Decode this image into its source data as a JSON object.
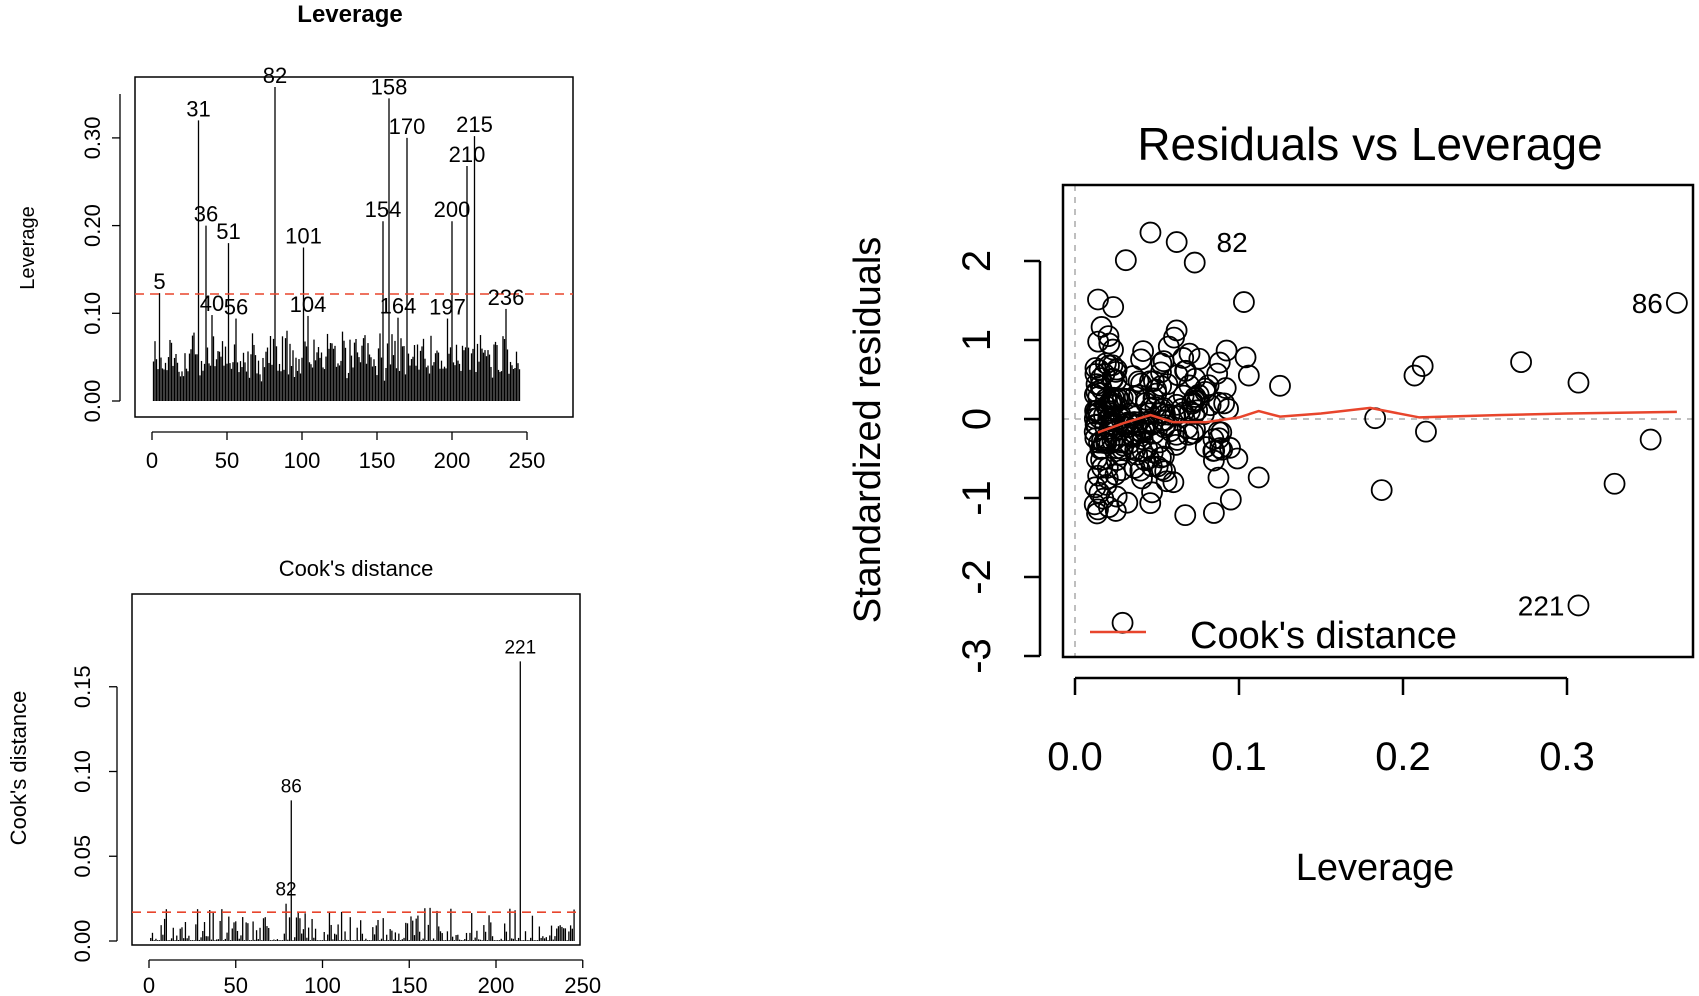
{
  "chart_data": [
    {
      "type": "bar",
      "title": "Leverage",
      "xlabel": "",
      "ylabel": "Leverage",
      "xlim": [
        0,
        250
      ],
      "ylim": [
        0,
        0.35
      ],
      "x_ticks": [
        "0",
        "50",
        "100",
        "150",
        "200",
        "250"
      ],
      "y_ticks": [
        "0.00",
        "0.10",
        "0.20",
        "0.30"
      ],
      "threshold": 0.122,
      "threshold_color": "#e8452c",
      "labeled_points": [
        {
          "label": "5",
          "x": 5,
          "y": 0.123
        },
        {
          "label": "31",
          "x": 31,
          "y": 0.32
        },
        {
          "label": "36",
          "x": 36,
          "y": 0.2
        },
        {
          "label": "51",
          "x": 51,
          "y": 0.18
        },
        {
          "label": "40",
          "x": 40,
          "y": 0.098
        },
        {
          "label": "56",
          "x": 56,
          "y": 0.094
        },
        {
          "label": "82",
          "x": 82,
          "y": 0.358
        },
        {
          "label": "101",
          "x": 101,
          "y": 0.175
        },
        {
          "label": "104",
          "x": 104,
          "y": 0.097
        },
        {
          "label": "154",
          "x": 154,
          "y": 0.205
        },
        {
          "label": "158",
          "x": 158,
          "y": 0.345
        },
        {
          "label": "164",
          "x": 164,
          "y": 0.095
        },
        {
          "label": "170",
          "x": 170,
          "y": 0.3
        },
        {
          "label": "197",
          "x": 197,
          "y": 0.094
        },
        {
          "label": "200",
          "x": 200,
          "y": 0.205
        },
        {
          "label": "210",
          "x": 210,
          "y": 0.268
        },
        {
          "label": "215",
          "x": 215,
          "y": 0.302
        },
        {
          "label": "236",
          "x": 236,
          "y": 0.105
        }
      ]
    },
    {
      "type": "bar",
      "title": "Cook's distance",
      "xlabel": "",
      "ylabel": "Cook's distance",
      "xlim": [
        0,
        250
      ],
      "ylim": [
        0,
        0.17
      ],
      "x_ticks": [
        "0",
        "50",
        "100",
        "150",
        "200",
        "250"
      ],
      "y_ticks": [
        "0.00",
        "0.05",
        "0.10",
        "0.15"
      ],
      "threshold": 0.017,
      "threshold_color": "#e8452c",
      "labeled_points": [
        {
          "label": "82",
          "x": 79,
          "y": 0.022
        },
        {
          "label": "86",
          "x": 82,
          "y": 0.083
        },
        {
          "label": "221",
          "x": 214,
          "y": 0.165
        }
      ]
    },
    {
      "type": "scatter",
      "title": "Residuals vs Leverage",
      "xlabel": "Leverage",
      "ylabel": "Standardized residuals",
      "xlim": [
        0,
        0.37
      ],
      "ylim": [
        -3,
        2.5
      ],
      "x_ticks": [
        "0.0",
        "0.1",
        "0.2",
        "0.3"
      ],
      "y_ticks": [
        "2",
        "1",
        "0",
        "-1",
        "-2",
        "-3"
      ],
      "smooth_color": "#e8452c",
      "smooth": [
        [
          0.014,
          -0.17
        ],
        [
          0.03,
          -0.05
        ],
        [
          0.046,
          0.05
        ],
        [
          0.06,
          -0.04
        ],
        [
          0.08,
          -0.04
        ],
        [
          0.1,
          0.02
        ],
        [
          0.112,
          0.1
        ],
        [
          0.125,
          0.03
        ],
        [
          0.15,
          0.07
        ],
        [
          0.18,
          0.14
        ],
        [
          0.21,
          0.02
        ],
        [
          0.26,
          0.05
        ],
        [
          0.3,
          0.07
        ],
        [
          0.367,
          0.09
        ]
      ],
      "outliers": [
        {
          "x": 0.367,
          "y": 1.47
        },
        {
          "x": 0.307,
          "y": 0.46
        },
        {
          "x": 0.272,
          "y": 0.72
        },
        {
          "x": 0.212,
          "y": 0.67
        },
        {
          "x": 0.207,
          "y": 0.55
        },
        {
          "x": 0.183,
          "y": 0.01
        },
        {
          "x": 0.187,
          "y": -0.9
        },
        {
          "x": 0.214,
          "y": -0.16
        },
        {
          "x": 0.329,
          "y": -0.82
        },
        {
          "x": 0.351,
          "y": -0.26
        },
        {
          "x": 0.307,
          "y": -2.36
        },
        {
          "x": 0.125,
          "y": 0.42
        },
        {
          "x": 0.112,
          "y": -0.74
        },
        {
          "x": 0.104,
          "y": 0.78
        },
        {
          "x": 0.103,
          "y": 1.48
        },
        {
          "x": 0.106,
          "y": 0.55
        },
        {
          "x": 0.099,
          "y": -0.5
        },
        {
          "x": 0.095,
          "y": -1.02
        },
        {
          "x": 0.031,
          "y": 2.01
        },
        {
          "x": 0.046,
          "y": 2.36
        },
        {
          "x": 0.062,
          "y": 2.24
        },
        {
          "x": 0.073,
          "y": 1.98
        },
        {
          "x": 0.029,
          "y": -2.58
        }
      ],
      "cluster": {
        "n": 230,
        "x_range": [
          0.012,
          0.095
        ],
        "y_sd": 0.85
      },
      "legend_label": "Cook's distance",
      "legend_position": "bottom-left",
      "labeled_points": [
        {
          "label": "82",
          "x": 0.079,
          "y": 2.24
        },
        {
          "label": "86",
          "x": 0.367,
          "y": 1.47
        },
        {
          "label": "221",
          "x": 0.307,
          "y": -2.36
        }
      ]
    }
  ]
}
